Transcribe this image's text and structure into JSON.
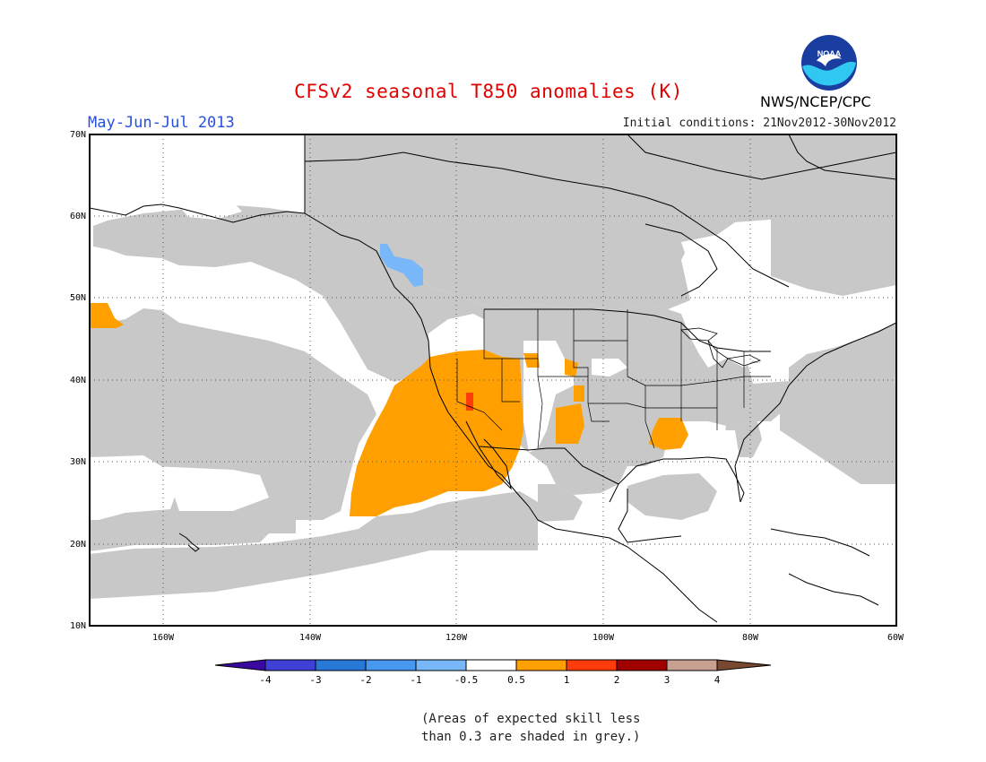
{
  "title": "CFSv2 seasonal T850 anomalies (K)",
  "period": "May-Jun-Jul 2013",
  "initial_conditions": "Initial conditions: 21Nov2012-30Nov2012",
  "agency": "NWS/NCEP/CPC",
  "logo_text": "NOAA",
  "lat_labels": [
    "70N",
    "60N",
    "50N",
    "40N",
    "30N",
    "20N",
    "10N"
  ],
  "lon_labels": [
    "160W",
    "140W",
    "120W",
    "100W",
    "80W",
    "60W"
  ],
  "colorbar": {
    "labels": [
      "-4",
      "-3",
      "-2",
      "-1",
      "-0.5",
      "0.5",
      "1",
      "2",
      "3",
      "4"
    ],
    "colors": [
      "#3a0aa0",
      "#4040d8",
      "#2878d8",
      "#4898f0",
      "#78b8f8",
      "#ffffff",
      "#ffa000",
      "#ff3c0a",
      "#a00000",
      "#c8a090",
      "#784830"
    ]
  },
  "note": {
    "line1": "(Areas of expected skill less",
    "line2": "than 0.3 are shaded in grey.)"
  },
  "colors": {
    "grey_low_skill": "#c8c8c8",
    "orange_0_5_to_1": "#ffa000",
    "red_1_to_2": "#ff3c0a",
    "light_blue_neg_0_5_to_neg_1": "#78b8f8"
  }
}
